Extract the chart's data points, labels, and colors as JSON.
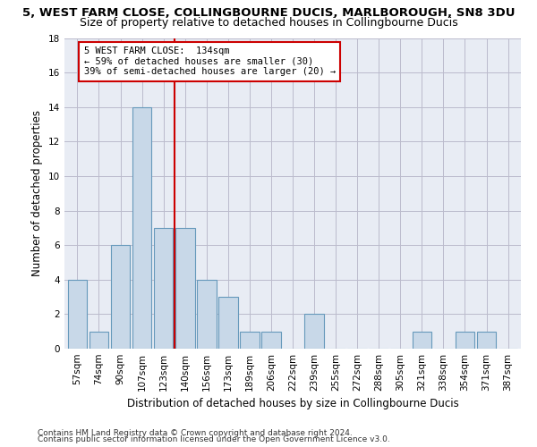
{
  "title1": "5, WEST FARM CLOSE, COLLINGBOURNE DUCIS, MARLBOROUGH, SN8 3DU",
  "title2": "Size of property relative to detached houses in Collingbourne Ducis",
  "xlabel": "Distribution of detached houses by size in Collingbourne Ducis",
  "ylabel": "Number of detached properties",
  "bar_labels": [
    "57sqm",
    "74sqm",
    "90sqm",
    "107sqm",
    "123sqm",
    "140sqm",
    "156sqm",
    "173sqm",
    "189sqm",
    "206sqm",
    "222sqm",
    "239sqm",
    "255sqm",
    "272sqm",
    "288sqm",
    "305sqm",
    "321sqm",
    "338sqm",
    "354sqm",
    "371sqm",
    "387sqm"
  ],
  "bar_values": [
    4,
    1,
    6,
    14,
    7,
    7,
    4,
    3,
    1,
    1,
    0,
    2,
    0,
    0,
    0,
    0,
    1,
    0,
    1,
    1,
    0
  ],
  "bar_color": "#c8d8e8",
  "bar_edge_color": "#6699bb",
  "vline_x": 4.5,
  "vline_color": "#cc0000",
  "annotation_line1": "5 WEST FARM CLOSE:  134sqm",
  "annotation_line2": "← 59% of detached houses are smaller (30)",
  "annotation_line3": "39% of semi-detached houses are larger (20) →",
  "annotation_box_color": "#ffffff",
  "annotation_box_edge": "#cc0000",
  "ylim": [
    0,
    18
  ],
  "yticks": [
    0,
    2,
    4,
    6,
    8,
    10,
    12,
    14,
    16,
    18
  ],
  "grid_color": "#bbbbcc",
  "background_color": "#e8ecf4",
  "footer1": "Contains HM Land Registry data © Crown copyright and database right 2024.",
  "footer2": "Contains public sector information licensed under the Open Government Licence v3.0.",
  "title1_fontsize": 9.5,
  "title2_fontsize": 9,
  "xlabel_fontsize": 8.5,
  "ylabel_fontsize": 8.5,
  "tick_fontsize": 7.5,
  "footer_fontsize": 6.5
}
